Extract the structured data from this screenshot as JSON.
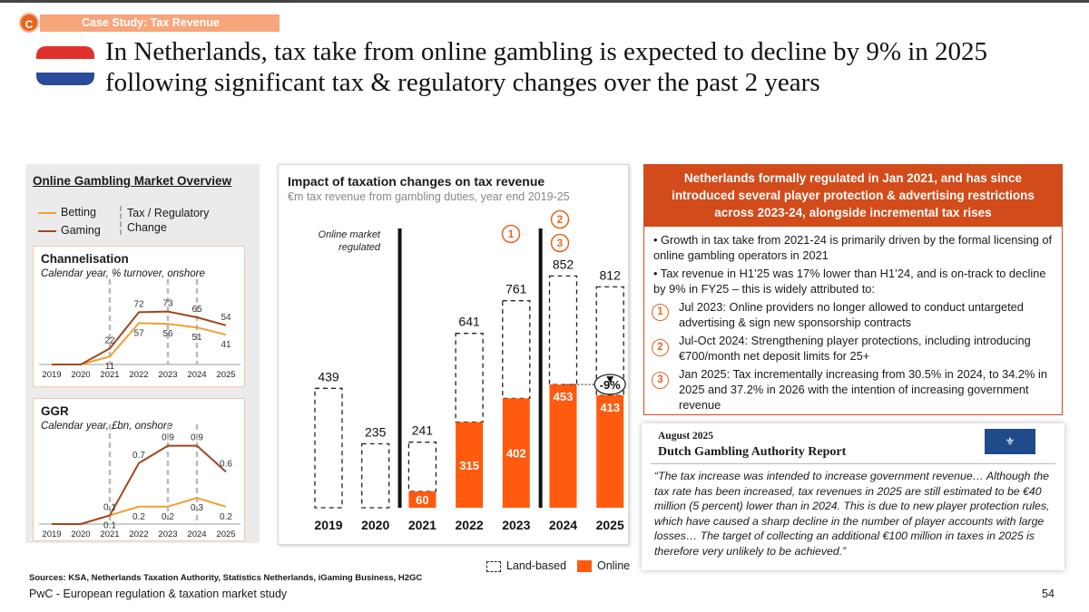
{
  "header": {
    "badge": "C",
    "section_label": "Case Study: Tax Revenue",
    "title": "In Netherlands, tax take from online gambling is expected to decline by 9% in 2025 following significant tax & regulatory changes over the past 2 years"
  },
  "colors": {
    "accent": "#e8641e",
    "online": "#ff5a0e",
    "betting": "#f0a030",
    "gaming": "#a0461e",
    "panel": "#ebebeb",
    "red_header": "#d24b1a"
  },
  "left_panel": {
    "title": "Online Gambling Market Overview",
    "legend": {
      "betting": "Betting",
      "gaming": "Gaming",
      "change": "Tax / Regulatory Change"
    }
  },
  "chart_data": [
    {
      "type": "line",
      "title": "Channelisation",
      "subtitle": "Calendar year, % turnover, onshore",
      "categories": [
        "2019",
        "2020",
        "2021",
        "2022",
        "2023",
        "2024",
        "2025"
      ],
      "series": [
        {
          "name": "Betting",
          "values": [
            null,
            null,
            11,
            57,
            56,
            51,
            41
          ]
        },
        {
          "name": "Gaming",
          "values": [
            null,
            null,
            22,
            72,
            73,
            65,
            54
          ]
        }
      ],
      "change_markers": [
        "2021",
        "2023",
        "2024"
      ]
    },
    {
      "type": "line",
      "title": "GGR",
      "subtitle": "Calendar year, £bn, onshore",
      "categories": [
        "2019",
        "2020",
        "2021",
        "2022",
        "2023",
        "2024",
        "2025"
      ],
      "series": [
        {
          "name": "Betting",
          "values": [
            null,
            null,
            0.1,
            0.2,
            0.2,
            0.3,
            0.2
          ]
        },
        {
          "name": "Gaming",
          "values": [
            null,
            null,
            0.1,
            0.7,
            0.9,
            0.9,
            0.6
          ]
        }
      ],
      "change_markers": [
        "2021",
        "2023",
        "2024"
      ]
    },
    {
      "type": "bar",
      "title": "Impact of taxation changes on tax revenue",
      "subtitle": "€m tax revenue from gambling duties, year end 2019-25",
      "categories": [
        "2019",
        "2020",
        "2021",
        "2022",
        "2023",
        "2024",
        "2025"
      ],
      "series": [
        {
          "name": "Land-based",
          "values": [
            439,
            235,
            181,
            326,
            359,
            399,
            399
          ]
        },
        {
          "name": "Online",
          "values": [
            0,
            0,
            60,
            315,
            402,
            453,
            413
          ]
        }
      ],
      "totals": [
        439,
        235,
        241,
        641,
        761,
        852,
        812
      ],
      "annotation_regulated": "Online market regulated",
      "annotation_change": "-9%",
      "markers": [
        {
          "label": "1",
          "year": "2023"
        },
        {
          "label": "2",
          "year": "2024"
        },
        {
          "label": "3",
          "year": "2024"
        }
      ],
      "legend": [
        "Land-based",
        "Online"
      ]
    }
  ],
  "right_box": {
    "header": "Netherlands formally regulated in Jan 2021, and has since introduced several player protection & advertising restrictions across 2023-24, alongside incremental tax rises",
    "bullet1": "• Growth in tax take from 2021-24 is primarily driven by the formal licensing of online gambling operators in 2021",
    "bullet2": "• Tax revenue in H1’25 was 17% lower than H1’24, and is on-track to decline by 9% in FY25 – this is widely attributed to:",
    "items": [
      {
        "n": "1",
        "text": "Jul 2023: Online providers no longer allowed to conduct untargeted advertising & sign new sponsorship contracts"
      },
      {
        "n": "2",
        "text": "Jul-Oct 2024: Strengthening player protections, including introducing €700/month net deposit limits for 25+"
      },
      {
        "n": "3",
        "text": "Jan 2025: Tax incrementally increasing from 30.5% in 2024, to 34.2% in 2025 and 37.2% in 2026 with the intention of increasing government revenue"
      }
    ]
  },
  "report": {
    "date": "August 2025",
    "title": "Dutch Gambling Authority Report",
    "logo": "⚜",
    "quote": "“The tax increase was intended to increase government revenue… Although the tax rate has been increased, tax revenues in 2025 are still estimated to be €40 million (5 percent) lower than in 2024. This is due to new player protection rules, which have caused a sharp decline in the number of player accounts with large losses… The target of collecting an additional €100 million in taxes in 2025 is therefore very unlikely to be achieved.”"
  },
  "footer": {
    "sources": "Sources: KSA, Netherlands Taxation Authority, Statistics Netherlands, iGaming Business, H2GC",
    "brand": "PwC - European regulation & taxation market study",
    "page": "54"
  }
}
